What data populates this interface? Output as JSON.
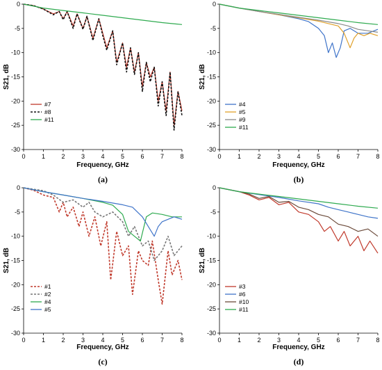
{
  "colors": {
    "red": "#c0392b",
    "black_dashed": "#111111",
    "green": "#2eaa4f",
    "blue": "#3f74c9",
    "orange": "#e0a02a",
    "gray": "#8a8a8a",
    "gray_dashed": "#777777",
    "brown": "#6b4a3a"
  },
  "chart_data": [
    {
      "id": "a",
      "panel_label": "(a)",
      "type": "line",
      "xlabel": "Frequency, GHz",
      "ylabel": "S21, dB",
      "xlim": [
        0,
        8
      ],
      "ylim": [
        -30,
        0
      ],
      "xticks": [
        0,
        1,
        2,
        3,
        4,
        5,
        6,
        7,
        8
      ],
      "yticks": [
        0,
        -5,
        -10,
        -15,
        -20,
        -25,
        -30
      ],
      "grid": false,
      "legend_position": "bottom-left",
      "series": [
        {
          "name": "#7",
          "color": "#c0392b",
          "dash": "solid",
          "x": [
            0,
            0.5,
            1,
            1.5,
            1.8,
            2.0,
            2.2,
            2.5,
            2.7,
            3.0,
            3.2,
            3.5,
            3.8,
            4.0,
            4.2,
            4.5,
            4.7,
            5.0,
            5.2,
            5.4,
            5.6,
            5.8,
            6.0,
            6.2,
            6.4,
            6.6,
            6.8,
            7.0,
            7.2,
            7.4,
            7.6,
            7.8,
            8.0
          ],
          "y": [
            0,
            -0.3,
            -1,
            -2,
            -1.5,
            -3,
            -1.5,
            -4.5,
            -2,
            -5,
            -2.5,
            -7,
            -3,
            -6,
            -9,
            -5.5,
            -12,
            -8,
            -13,
            -9,
            -14,
            -10,
            -17,
            -12,
            -15,
            -13,
            -20,
            -16,
            -22,
            -14,
            -25,
            -18,
            -22
          ]
        },
        {
          "name": "#8",
          "color": "#111111",
          "dash": "dashed",
          "x": [
            0,
            0.5,
            1,
            1.5,
            1.8,
            2.0,
            2.2,
            2.5,
            2.7,
            3.0,
            3.2,
            3.5,
            3.8,
            4.0,
            4.2,
            4.5,
            4.7,
            5.0,
            5.2,
            5.4,
            5.6,
            5.8,
            6.0,
            6.2,
            6.4,
            6.6,
            6.8,
            7.0,
            7.2,
            7.4,
            7.6,
            7.8,
            8.0
          ],
          "y": [
            0,
            -0.3,
            -1,
            -2.2,
            -1.5,
            -3.2,
            -1.5,
            -5,
            -2,
            -5.2,
            -2.5,
            -7.5,
            -3,
            -6.5,
            -9.5,
            -5.5,
            -12.5,
            -8,
            -14,
            -9,
            -14.5,
            -10,
            -18,
            -12,
            -16,
            -13,
            -21,
            -16,
            -23,
            -14,
            -26,
            -18,
            -23
          ]
        },
        {
          "name": "#11",
          "color": "#2eaa4f",
          "dash": "solid",
          "x": [
            0,
            1,
            2,
            3,
            4,
            5,
            6,
            7,
            8
          ],
          "y": [
            0,
            -0.8,
            -1.3,
            -1.8,
            -2.3,
            -2.8,
            -3.3,
            -3.8,
            -4.2
          ]
        }
      ]
    },
    {
      "id": "b",
      "panel_label": "(b)",
      "type": "line",
      "xlabel": "Frequency, GHz",
      "ylabel": "S21, dB",
      "xlim": [
        0,
        8
      ],
      "ylim": [
        -30,
        0
      ],
      "xticks": [
        0,
        1,
        2,
        3,
        4,
        5,
        6,
        7,
        8
      ],
      "yticks": [
        0,
        -5,
        -10,
        -15,
        -20,
        -25,
        -30
      ],
      "grid": false,
      "legend_position": "bottom-left",
      "series": [
        {
          "name": "#4",
          "color": "#3f74c9",
          "dash": "solid",
          "x": [
            0,
            1,
            2,
            3,
            4,
            4.5,
            5.0,
            5.3,
            5.5,
            5.7,
            5.9,
            6.1,
            6.3,
            6.6,
            7.0,
            7.5,
            8.0
          ],
          "y": [
            0,
            -0.8,
            -1.5,
            -2.2,
            -3,
            -3.6,
            -5,
            -6.5,
            -10,
            -8,
            -11,
            -9,
            -5.5,
            -5,
            -6,
            -6,
            -5.2
          ]
        },
        {
          "name": "#5",
          "color": "#e0a02a",
          "dash": "solid",
          "x": [
            0,
            1,
            2,
            3,
            4,
            5,
            5.5,
            6.0,
            6.3,
            6.6,
            6.8,
            7.0,
            7.3,
            7.6,
            8.0
          ],
          "y": [
            0,
            -0.8,
            -1.5,
            -2.2,
            -2.8,
            -3.5,
            -4,
            -4.5,
            -6,
            -9,
            -7,
            -6,
            -6.5,
            -6,
            -6.5
          ]
        },
        {
          "name": "#9",
          "color": "#8a8a8a",
          "dash": "solid",
          "x": [
            0,
            1,
            2,
            3,
            4,
            5,
            6,
            6.5,
            7,
            7.5,
            8
          ],
          "y": [
            0,
            -0.8,
            -1.5,
            -2.1,
            -2.7,
            -3.3,
            -4,
            -4.5,
            -5.2,
            -5.5,
            -5.8
          ]
        },
        {
          "name": "#11",
          "color": "#2eaa4f",
          "dash": "solid",
          "x": [
            0,
            1,
            2,
            3,
            4,
            5,
            6,
            7,
            8
          ],
          "y": [
            0,
            -0.8,
            -1.3,
            -1.8,
            -2.3,
            -2.8,
            -3.3,
            -3.8,
            -4.2
          ]
        }
      ]
    },
    {
      "id": "c",
      "panel_label": "(c)",
      "type": "line",
      "xlabel": "Frequency, GHz",
      "ylabel": "S21, dB",
      "xlim": [
        0,
        8
      ],
      "ylim": [
        -30,
        0
      ],
      "xticks": [
        0,
        1,
        2,
        3,
        4,
        5,
        6,
        7,
        8
      ],
      "yticks": [
        0,
        -5,
        -10,
        -15,
        -20,
        -25,
        -30
      ],
      "grid": false,
      "legend_position": "bottom-left",
      "series": [
        {
          "name": "#1",
          "color": "#c0392b",
          "dash": "dashed",
          "x": [
            0,
            0.5,
            1.0,
            1.5,
            1.8,
            2.0,
            2.2,
            2.5,
            2.8,
            3.0,
            3.3,
            3.6,
            3.9,
            4.2,
            4.4,
            4.7,
            5.0,
            5.3,
            5.5,
            5.8,
            6.0,
            6.3,
            6.5,
            6.8,
            7.0,
            7.3,
            7.5,
            7.8,
            8.0
          ],
          "y": [
            0,
            -0.5,
            -1.5,
            -2,
            -5,
            -3,
            -6,
            -4,
            -8,
            -5,
            -10,
            -6,
            -12,
            -7,
            -19,
            -9,
            -14,
            -12,
            -22,
            -13,
            -15,
            -16,
            -11,
            -19,
            -24,
            -13,
            -18,
            -15,
            -19
          ]
        },
        {
          "name": "#2",
          "color": "#777777",
          "dash": "dashed",
          "x": [
            0,
            1,
            1.5,
            2.0,
            2.5,
            3.0,
            3.3,
            3.6,
            4.0,
            4.5,
            5.0,
            5.3,
            5.6,
            6.0,
            6.3,
            6.6,
            7.0,
            7.3,
            7.6,
            8.0
          ],
          "y": [
            0,
            -0.6,
            -1.5,
            -3,
            -2.5,
            -4,
            -3,
            -5,
            -6,
            -5,
            -7,
            -10,
            -8,
            -12,
            -11,
            -15,
            -13,
            -10,
            -14,
            -12
          ]
        },
        {
          "name": "#4",
          "color": "#2eaa4f",
          "dash": "solid",
          "x": [
            0,
            1,
            2,
            3,
            4,
            4.5,
            5.0,
            5.3,
            5.6,
            5.9,
            6.2,
            6.5,
            7.0,
            7.5,
            8.0
          ],
          "y": [
            0,
            -0.8,
            -1.5,
            -2.2,
            -3,
            -3.6,
            -5.5,
            -9,
            -10,
            -11,
            -6,
            -5.2,
            -5.5,
            -6,
            -6
          ]
        },
        {
          "name": "#5",
          "color": "#3f74c9",
          "dash": "solid",
          "x": [
            0,
            1,
            2,
            3,
            4,
            5,
            5.5,
            6.0,
            6.3,
            6.6,
            6.8,
            7.0,
            7.3,
            7.6,
            8.0
          ],
          "y": [
            0,
            -0.8,
            -1.5,
            -2.2,
            -2.8,
            -3.5,
            -4,
            -6,
            -8,
            -10,
            -8,
            -7,
            -6.5,
            -6,
            -6.5
          ]
        }
      ]
    },
    {
      "id": "d",
      "panel_label": "(d)",
      "type": "line",
      "xlabel": "Frequency, GHz",
      "ylabel": "S21, dB",
      "xlim": [
        0,
        8
      ],
      "ylim": [
        -30,
        0
      ],
      "xticks": [
        0,
        1,
        2,
        3,
        4,
        5,
        6,
        7,
        8
      ],
      "yticks": [
        0,
        -5,
        -10,
        -15,
        -20,
        -25,
        -30
      ],
      "grid": false,
      "legend_position": "bottom-left",
      "series": [
        {
          "name": "#3",
          "color": "#c0392b",
          "dash": "solid",
          "x": [
            0,
            1,
            1.5,
            2.0,
            2.5,
            3.0,
            3.5,
            4.0,
            4.5,
            5.0,
            5.3,
            5.6,
            6.0,
            6.3,
            6.6,
            7.0,
            7.3,
            7.6,
            8.0
          ],
          "y": [
            0,
            -0.8,
            -1.5,
            -2.5,
            -2,
            -3.5,
            -3,
            -5,
            -5.5,
            -7,
            -9,
            -8,
            -11,
            -9,
            -12,
            -10,
            -13,
            -11,
            -13.5
          ]
        },
        {
          "name": "#6",
          "color": "#3f74c9",
          "dash": "solid",
          "x": [
            0,
            1,
            2,
            3,
            4,
            5,
            5.5,
            6,
            6.5,
            7,
            7.5,
            8
          ],
          "y": [
            0,
            -0.8,
            -1.4,
            -2,
            -2.7,
            -3.3,
            -4,
            -4.5,
            -5,
            -5.5,
            -6,
            -6.3
          ]
        },
        {
          "name": "#10",
          "color": "#6b4a3a",
          "dash": "solid",
          "x": [
            0,
            1,
            1.5,
            2.0,
            2.5,
            3.0,
            3.5,
            4.0,
            4.5,
            5.0,
            5.5,
            6.0,
            6.5,
            7.0,
            7.5,
            8.0
          ],
          "y": [
            0,
            -0.8,
            -1.3,
            -2.2,
            -1.8,
            -3,
            -2.8,
            -4,
            -4.5,
            -5.5,
            -6,
            -7.5,
            -8,
            -9,
            -8.5,
            -10
          ]
        },
        {
          "name": "#11",
          "color": "#2eaa4f",
          "dash": "solid",
          "x": [
            0,
            1,
            2,
            3,
            4,
            5,
            6,
            7,
            8
          ],
          "y": [
            0,
            -0.8,
            -1.3,
            -1.8,
            -2.3,
            -2.8,
            -3.3,
            -3.8,
            -4.2
          ]
        }
      ]
    }
  ]
}
